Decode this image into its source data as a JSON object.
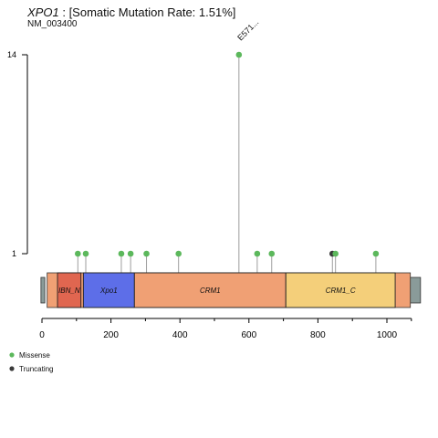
{
  "header": {
    "gene": "XPO1",
    "separator": ":",
    "rate_text": "[Somatic Mutation Rate: 1.51%]",
    "transcript": "NM_003400"
  },
  "colors": {
    "missense": "#5cb85c",
    "truncating": "#3a3a3a",
    "stem": "#9e9e9e",
    "backbone": "#f0a074",
    "terminal": "#8a9b99"
  },
  "chart_data": {
    "type": "lollipop",
    "title": "XPO1 : [Somatic Mutation Rate: 1.51%]",
    "subtitle": "NM_003400",
    "protein_length": 1071,
    "xlim": [
      0,
      1071
    ],
    "x_ticks": [
      0,
      200,
      400,
      600,
      800,
      1000
    ],
    "y_ticks": [
      1,
      14
    ],
    "ylim": [
      0,
      14
    ],
    "domains": [
      {
        "name": "IBN_N",
        "start": 45,
        "end": 113,
        "color": "#e06650"
      },
      {
        "name": "Xpo1",
        "start": 120,
        "end": 268,
        "color": "#5d6ee8"
      },
      {
        "name": "CRM1",
        "start": 268,
        "end": 707,
        "color": "#f0a074"
      },
      {
        "name": "CRM1_C",
        "start": 707,
        "end": 1024,
        "color": "#f4cf7a"
      }
    ],
    "mutations": [
      {
        "pos": 104,
        "count": 1,
        "type": "Missense"
      },
      {
        "pos": 127,
        "count": 1,
        "type": "Missense"
      },
      {
        "pos": 230,
        "count": 1,
        "type": "Missense"
      },
      {
        "pos": 257,
        "count": 1,
        "type": "Missense"
      },
      {
        "pos": 303,
        "count": 1,
        "type": "Missense"
      },
      {
        "pos": 396,
        "count": 1,
        "type": "Missense"
      },
      {
        "pos": 571,
        "count": 14,
        "type": "Missense",
        "label": "E571..."
      },
      {
        "pos": 624,
        "count": 1,
        "type": "Missense"
      },
      {
        "pos": 666,
        "count": 1,
        "type": "Missense"
      },
      {
        "pos": 842,
        "count": 1,
        "type": "Truncating"
      },
      {
        "pos": 851,
        "count": 1,
        "type": "Missense"
      },
      {
        "pos": 968,
        "count": 1,
        "type": "Missense"
      }
    ],
    "legend": [
      "Missense",
      "Truncating"
    ]
  }
}
